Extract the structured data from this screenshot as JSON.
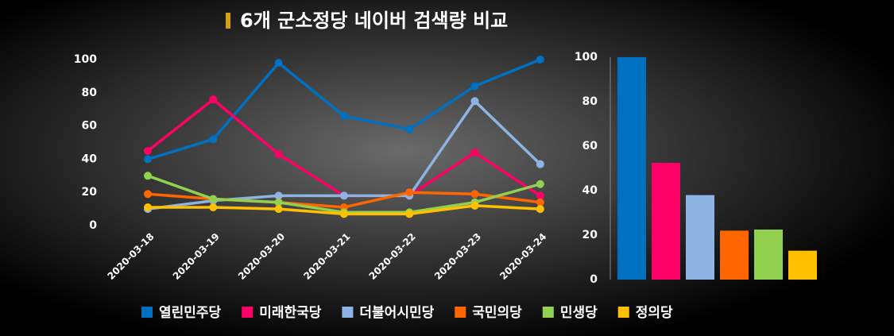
{
  "chart_data": [
    {
      "type": "line",
      "title": "6개 군소정당 네이버 검색량 비교",
      "x": [
        "2020-03-18",
        "2020-03-19",
        "2020-03-20",
        "2020-03-21",
        "2020-03-22",
        "2020-03-23",
        "2020-03-24"
      ],
      "ylim": [
        0,
        100
      ],
      "yticks": [
        0,
        20,
        40,
        60,
        80,
        100
      ],
      "series": [
        {
          "name": "열린민주당",
          "color": "#0070c0",
          "values": [
            40,
            52,
            98,
            66,
            58,
            84,
            100
          ]
        },
        {
          "name": "미래한국당",
          "color": "#ff0066",
          "values": [
            45,
            76,
            43,
            18,
            18,
            44,
            18
          ]
        },
        {
          "name": "더불어시민당",
          "color": "#8eb4e3",
          "values": [
            10,
            15,
            18,
            18,
            18,
            75,
            37
          ]
        },
        {
          "name": "국민의당",
          "color": "#ff6600",
          "values": [
            19,
            16,
            14,
            11,
            20,
            19,
            14
          ]
        },
        {
          "name": "민생당",
          "color": "#92d050",
          "values": [
            30,
            16,
            14,
            8,
            8,
            14,
            25
          ]
        },
        {
          "name": "정의당",
          "color": "#ffc000",
          "values": [
            11,
            11,
            10,
            7,
            7,
            12,
            10
          ]
        }
      ]
    },
    {
      "type": "bar",
      "ylim": [
        0,
        100
      ],
      "yticks": [
        0,
        20,
        40,
        60,
        80,
        100
      ],
      "values": [
        100,
        52.5,
        38,
        22,
        22.5,
        13
      ],
      "colors": [
        "#0070c0",
        "#ff0066",
        "#8eb4e3",
        "#ff6600",
        "#92d050",
        "#ffc000"
      ]
    }
  ]
}
